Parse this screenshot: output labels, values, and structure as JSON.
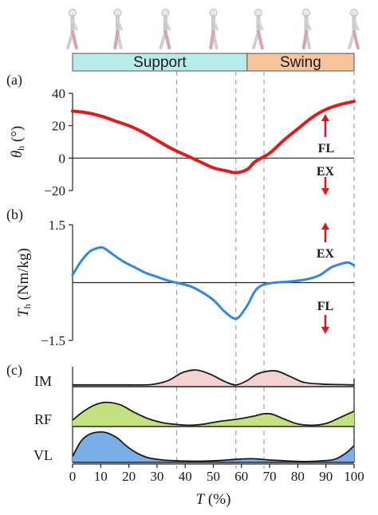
{
  "phases": [
    {
      "name": "Support",
      "start": 0,
      "end": 62,
      "color": "#b7ece8"
    },
    {
      "name": "Swing",
      "start": 62,
      "end": 100,
      "color": "#f8c49a"
    }
  ],
  "panel_labels": [
    "(a)",
    "(b)",
    "(c)"
  ],
  "direction_labels": {
    "a_up": "FL",
    "a_down": "EX",
    "b_up": "EX",
    "b_down": "FL"
  },
  "gait_phase_markers": [
    37,
    58,
    68,
    100
  ],
  "x_axis": {
    "label_var": "T",
    "label_unit": " (%)",
    "ticks": [
      0,
      10,
      20,
      30,
      40,
      50,
      60,
      70,
      80,
      90,
      100
    ]
  },
  "arrow_color": "#e0161b",
  "chart_data": [
    {
      "type": "line",
      "panel": "a",
      "ylabel_var": "θ",
      "ylabel_sub": "h",
      "ylabel_unit": " (°)",
      "ylim": [
        -20,
        40
      ],
      "yticks": [
        -20,
        0,
        20,
        40
      ],
      "color": "#e01b1b",
      "x": [
        0,
        5,
        10,
        15,
        20,
        25,
        30,
        35,
        40,
        45,
        50,
        55,
        58,
        62,
        65,
        70,
        75,
        80,
        85,
        90,
        95,
        100
      ],
      "values": [
        29,
        28,
        26,
        23,
        20,
        16,
        11,
        6,
        2,
        -2,
        -6,
        -8,
        -9,
        -7,
        -2,
        3,
        11,
        18,
        25,
        30,
        33,
        35
      ]
    },
    {
      "type": "line",
      "panel": "b",
      "ylabel_var": "T",
      "ylabel_sub": "h",
      "ylabel_unit": " (Nm/kg)",
      "ylim": [
        -1.5,
        1.5
      ],
      "ytick_labels": [
        "1.5",
        "−1.5"
      ],
      "yticks": [
        1.5,
        -1.5
      ],
      "color": "#3388dd",
      "x": [
        0,
        3,
        6,
        9,
        11,
        14,
        18,
        22,
        26,
        30,
        34,
        38,
        42,
        46,
        50,
        54,
        57,
        59,
        62,
        65,
        68,
        72,
        76,
        80,
        84,
        88,
        92,
        96,
        98,
        100
      ],
      "values": [
        0.2,
        0.55,
        0.8,
        0.9,
        0.9,
        0.75,
        0.55,
        0.4,
        0.25,
        0.15,
        0.05,
        -0.02,
        -0.1,
        -0.25,
        -0.45,
        -0.75,
        -0.92,
        -0.9,
        -0.6,
        -0.2,
        -0.05,
        0.0,
        0.02,
        0.05,
        0.1,
        0.2,
        0.4,
        0.5,
        0.52,
        0.45
      ]
    },
    {
      "type": "area",
      "panel": "c",
      "series": [
        {
          "name": "IM",
          "fill": "#f4d2d2",
          "x": [
            0,
            10,
            20,
            28,
            34,
            39,
            44,
            49,
            54,
            58,
            62,
            66,
            72,
            77,
            82,
            88,
            94,
            100
          ],
          "values": [
            0.1,
            0.1,
            0.1,
            0.12,
            0.35,
            0.8,
            0.95,
            0.7,
            0.3,
            0.1,
            0.35,
            0.75,
            0.9,
            0.6,
            0.25,
            0.15,
            0.12,
            0.1
          ]
        },
        {
          "name": "RF",
          "fill": "#c2e27f",
          "x": [
            0,
            4,
            8,
            12,
            17,
            22,
            27,
            32,
            37,
            42,
            47,
            52,
            58,
            64,
            68,
            71,
            75,
            80,
            85,
            90,
            95,
            100
          ],
          "values": [
            0.25,
            0.6,
            0.85,
            0.95,
            0.85,
            0.55,
            0.3,
            0.15,
            0.08,
            0.05,
            0.1,
            0.2,
            0.28,
            0.4,
            0.5,
            0.48,
            0.3,
            0.1,
            0.05,
            0.12,
            0.35,
            0.6
          ]
        },
        {
          "name": "VL",
          "fill": "#7aaee6",
          "x": [
            0,
            3,
            6,
            9,
            11,
            13,
            16,
            19,
            23,
            27,
            32,
            38,
            45,
            52,
            58,
            64,
            70,
            76,
            82,
            88,
            93,
            97,
            100
          ],
          "values": [
            0.2,
            0.7,
            0.93,
            1.0,
            1.0,
            0.95,
            0.8,
            0.55,
            0.3,
            0.15,
            0.08,
            0.05,
            0.04,
            0.06,
            0.1,
            0.12,
            0.08,
            0.05,
            0.03,
            0.05,
            0.1,
            0.3,
            0.55
          ]
        }
      ]
    }
  ]
}
